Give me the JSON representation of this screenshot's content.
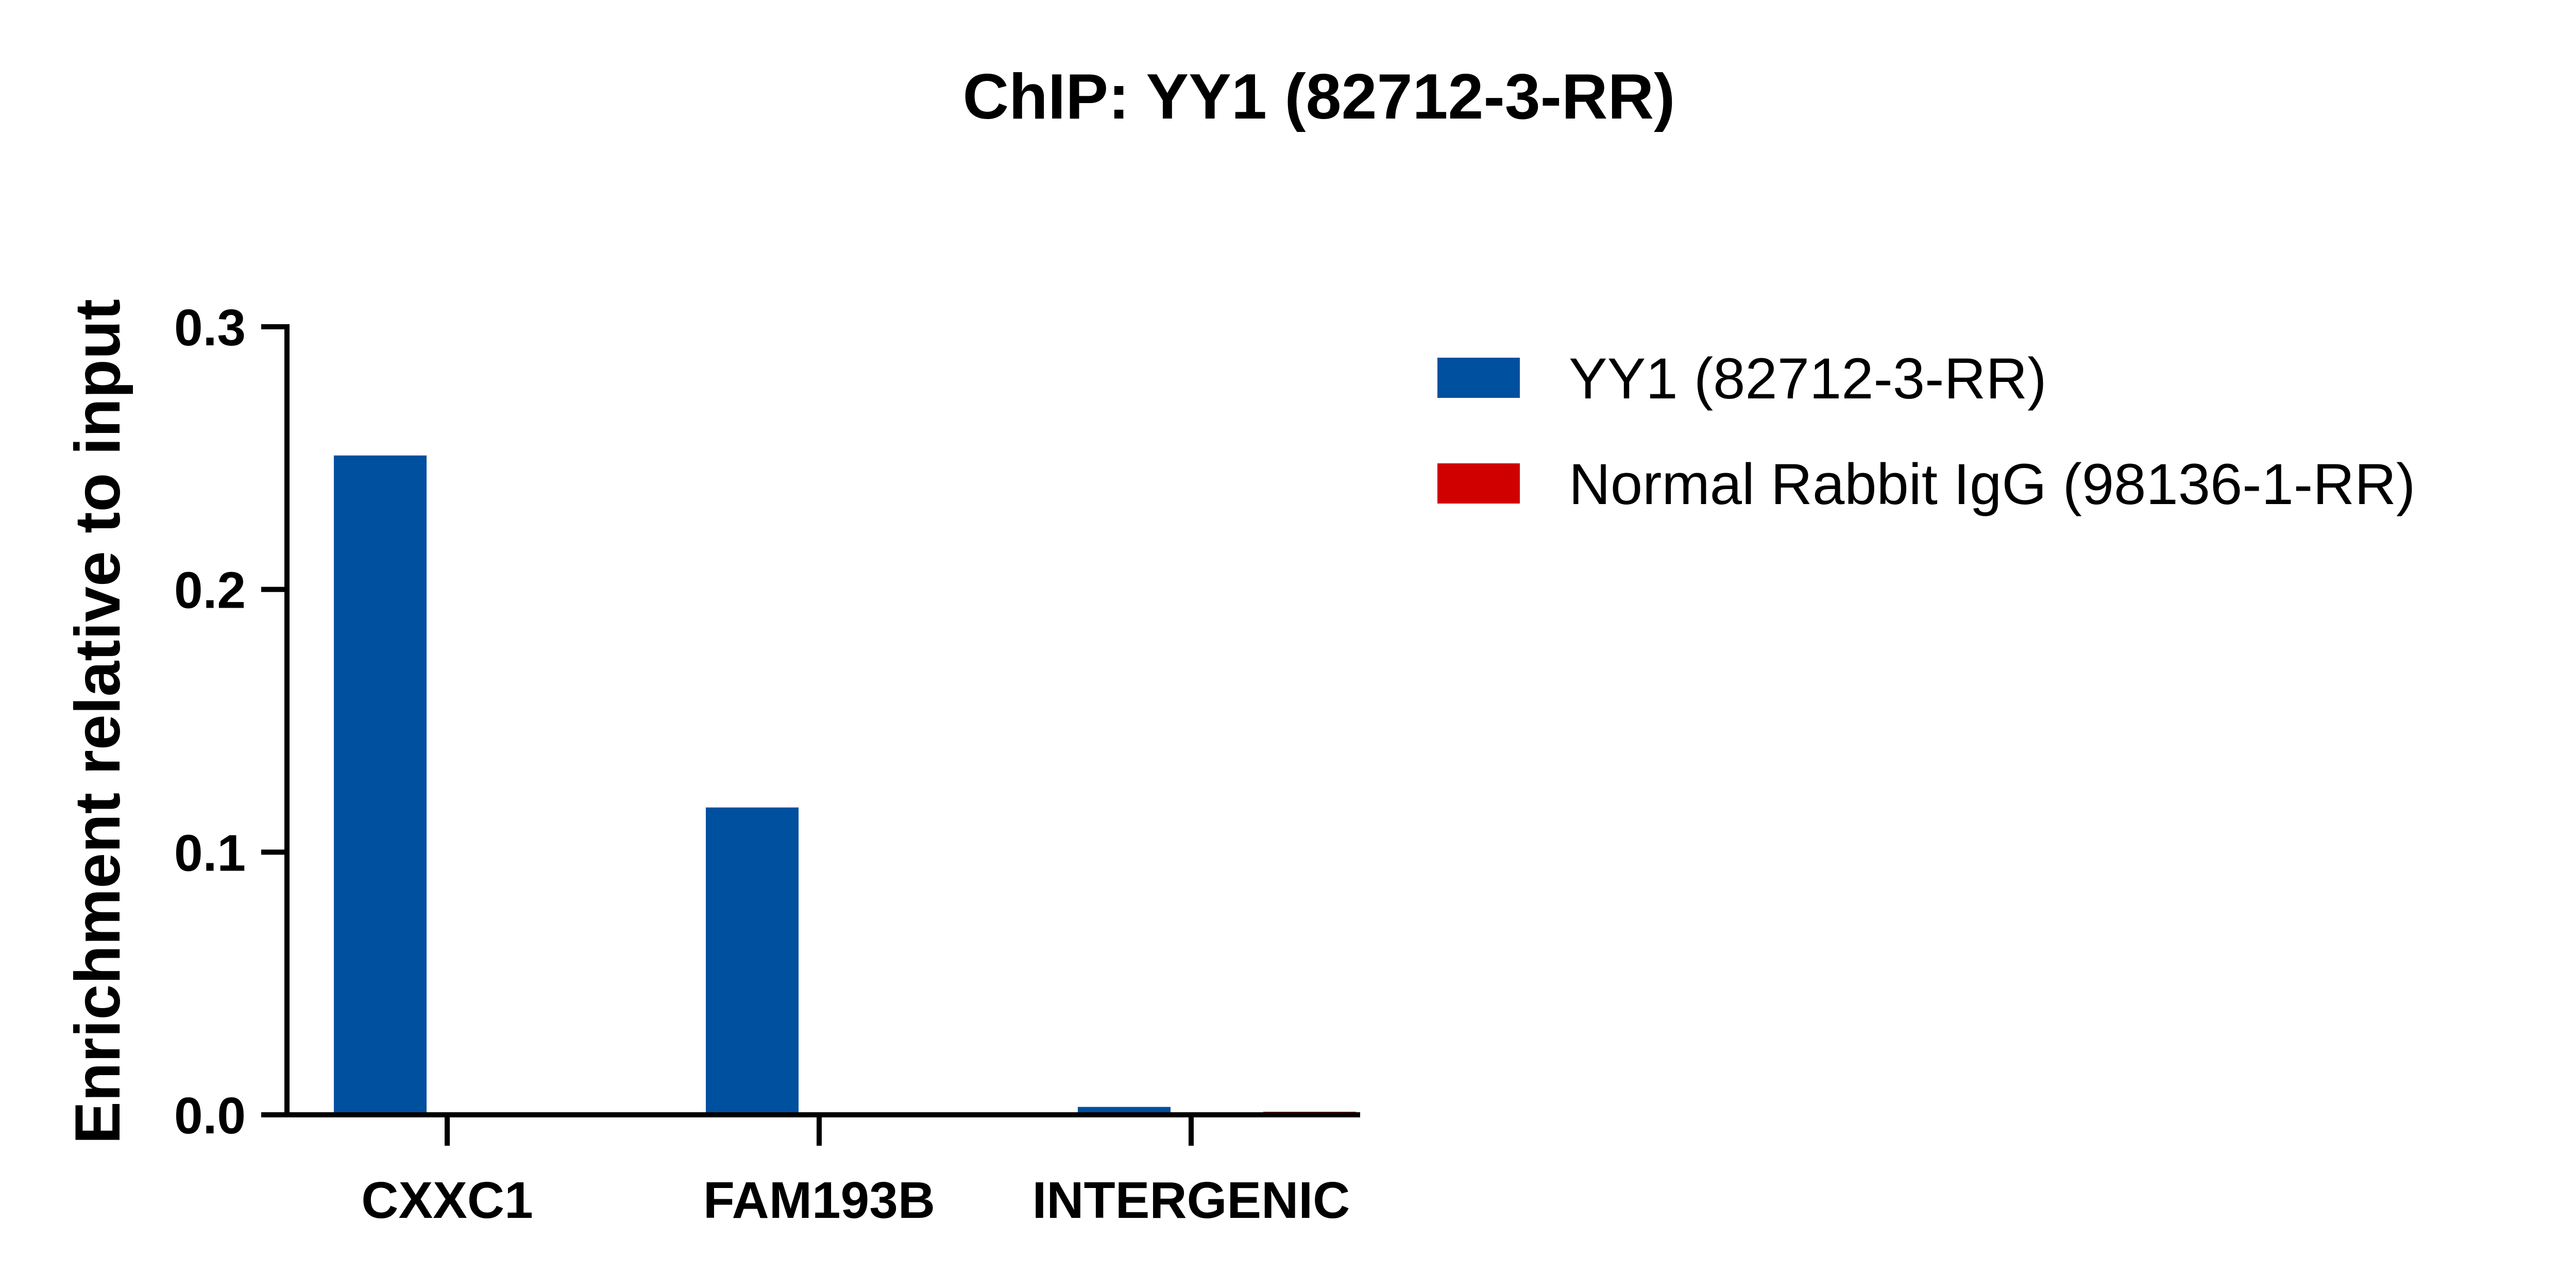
{
  "chart_data": {
    "type": "bar",
    "title": "ChIP: YY1 (82712-3-RR)",
    "xlabel": "",
    "ylabel": "Enrichment relative to input",
    "categories": [
      "CXXC1",
      "FAM193B",
      "INTERGENIC"
    ],
    "series": [
      {
        "name": "YY1 (82712-3-RR)",
        "values": [
          0.251,
          0.117,
          0.003
        ],
        "color": "#0050A0"
      },
      {
        "name": "Normal Rabbit IgG (98136-1-RR)",
        "values": [
          0.0,
          0.0,
          0.001
        ],
        "color": "#D00000"
      }
    ],
    "ylim": [
      0,
      0.3
    ],
    "yticks": [
      0.0,
      0.1,
      0.2,
      0.3
    ],
    "ytick_labels": [
      "0.0",
      "0.1",
      "0.2",
      "0.3"
    ],
    "grid": false,
    "legend_position": "right"
  }
}
